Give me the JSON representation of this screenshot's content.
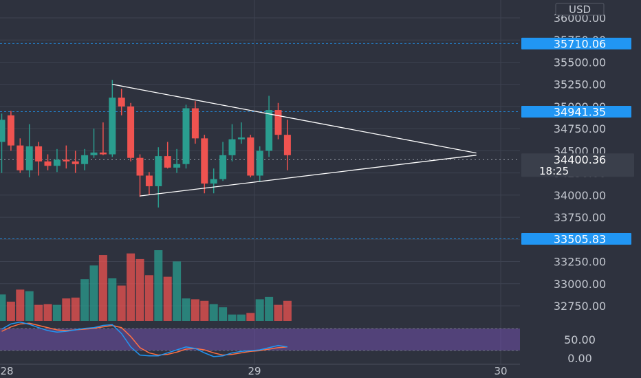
{
  "theme": {
    "background": "#2e323e",
    "grid": "#3d4250",
    "up": "#2a9d8f",
    "down": "#ef5350",
    "axis_text": "#c4c8d0",
    "dashed_level": "#2196f3",
    "label_bg": "#2196f3",
    "current_label_bg": "#3a3f4b",
    "trend_line": "#ffffff",
    "rsi_band": "#7e57c2",
    "rsi_k": "#2196f3",
    "rsi_d": "#ff7043"
  },
  "chart_data": {
    "type": "candlestick",
    "currency": "USD",
    "x_ticks": [
      "28",
      "29",
      "30"
    ],
    "y_ticks": [
      "36000.00",
      "35750.00",
      "35500.00",
      "35250.00",
      "35000.00",
      "34750.00",
      "34500.00",
      "34250.00",
      "34000.00",
      "33750.00",
      "33500.00",
      "33250.00",
      "33000.00",
      "32750.00"
    ],
    "osc_ticks": [
      "50.00",
      "0.00"
    ],
    "price_levels": [
      {
        "label": "35710.06",
        "value": 35710.06
      },
      {
        "label": "34941.35",
        "value": 34941.35
      },
      {
        "label": "33505.83",
        "value": 33505.83
      }
    ],
    "current_price": {
      "label": "34400.36",
      "countdown": "18:25",
      "value": 34400.36
    },
    "candles": [
      {
        "o": 34600,
        "h": 34920,
        "l": 34250,
        "c": 34850
      },
      {
        "o": 34900,
        "h": 34950,
        "l": 34500,
        "c": 34560
      },
      {
        "o": 34560,
        "h": 34640,
        "l": 34250,
        "c": 34280
      },
      {
        "o": 34280,
        "h": 34800,
        "l": 34200,
        "c": 34550
      },
      {
        "o": 34550,
        "h": 34600,
        "l": 34220,
        "c": 34380
      },
      {
        "o": 34380,
        "h": 34460,
        "l": 34280,
        "c": 34330
      },
      {
        "o": 34330,
        "h": 34520,
        "l": 34260,
        "c": 34400
      },
      {
        "o": 34400,
        "h": 34560,
        "l": 34300,
        "c": 34380
      },
      {
        "o": 34380,
        "h": 34500,
        "l": 34250,
        "c": 34350
      },
      {
        "o": 34350,
        "h": 34520,
        "l": 34280,
        "c": 34450
      },
      {
        "o": 34450,
        "h": 34750,
        "l": 34420,
        "c": 34480
      },
      {
        "o": 34480,
        "h": 34820,
        "l": 34450,
        "c": 34460
      },
      {
        "o": 34460,
        "h": 35300,
        "l": 34430,
        "c": 35100
      },
      {
        "o": 35100,
        "h": 35200,
        "l": 34900,
        "c": 35000
      },
      {
        "o": 35000,
        "h": 35040,
        "l": 34380,
        "c": 34420
      },
      {
        "o": 34420,
        "h": 34460,
        "l": 33980,
        "c": 34220
      },
      {
        "o": 34220,
        "h": 34260,
        "l": 34000,
        "c": 34100
      },
      {
        "o": 34100,
        "h": 34540,
        "l": 33860,
        "c": 34440
      },
      {
        "o": 34440,
        "h": 34600,
        "l": 34300,
        "c": 34310
      },
      {
        "o": 34310,
        "h": 34520,
        "l": 34250,
        "c": 34350
      },
      {
        "o": 34350,
        "h": 35020,
        "l": 34300,
        "c": 34980
      },
      {
        "o": 34980,
        "h": 35060,
        "l": 34580,
        "c": 34640
      },
      {
        "o": 34640,
        "h": 34680,
        "l": 34020,
        "c": 34130
      },
      {
        "o": 34130,
        "h": 34300,
        "l": 34020,
        "c": 34180
      },
      {
        "o": 34180,
        "h": 34600,
        "l": 34160,
        "c": 34450
      },
      {
        "o": 34450,
        "h": 34800,
        "l": 34380,
        "c": 34630
      },
      {
        "o": 34630,
        "h": 34820,
        "l": 34580,
        "c": 34650
      },
      {
        "o": 34650,
        "h": 34680,
        "l": 34200,
        "c": 34220
      },
      {
        "o": 34220,
        "h": 34550,
        "l": 34150,
        "c": 34500
      },
      {
        "o": 34500,
        "h": 35120,
        "l": 34430,
        "c": 34960
      },
      {
        "o": 34960,
        "h": 35040,
        "l": 34630,
        "c": 34680
      },
      {
        "o": 34680,
        "h": 34850,
        "l": 34280,
        "c": 34450
      }
    ],
    "volume": [
      0.33,
      0.24,
      0.39,
      0.37,
      0.2,
      0.21,
      0.2,
      0.28,
      0.29,
      0.52,
      0.69,
      0.82,
      0.53,
      0.44,
      0.84,
      0.77,
      0.57,
      0.88,
      0.55,
      0.74,
      0.28,
      0.27,
      0.25,
      0.21,
      0.17,
      0.08,
      0.08,
      0.1,
      0.27,
      0.3,
      0.2,
      0.25
    ],
    "oscillator_k": [
      78,
      92,
      97,
      91,
      82,
      74,
      70,
      72,
      76,
      80,
      82,
      88,
      90,
      66,
      30,
      8,
      6,
      6,
      14,
      22,
      30,
      26,
      14,
      4,
      6,
      14,
      18,
      20,
      22,
      28,
      34,
      30
    ],
    "oscillator_d": [
      72,
      84,
      92,
      94,
      88,
      82,
      76,
      74,
      76,
      78,
      80,
      84,
      88,
      82,
      58,
      28,
      14,
      8,
      10,
      16,
      24,
      26,
      22,
      14,
      8,
      10,
      14,
      18,
      20,
      24,
      28,
      30
    ],
    "trend_upper": {
      "from": {
        "bar": 12,
        "price": 35250
      },
      "to": {
        "bar": 51.5,
        "price": 34475
      }
    },
    "trend_lower": {
      "from": {
        "bar": 15,
        "price": 33990
      },
      "to": {
        "bar": 51.5,
        "price": 34450
      }
    }
  }
}
